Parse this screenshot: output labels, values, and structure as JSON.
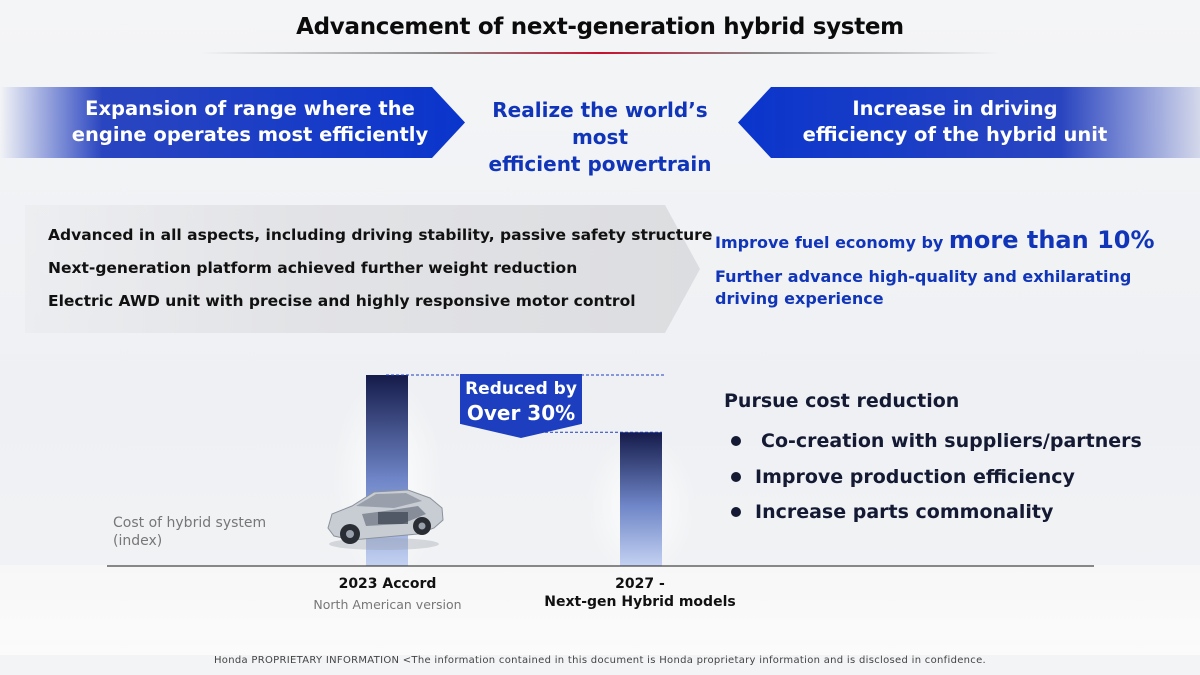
{
  "title": "Advancement of next-generation hybrid system",
  "banners": {
    "left": [
      "Expansion of range where the",
      "engine operates most efficiently"
    ],
    "center": [
      "Realize the world’s most",
      "efficient powertrain"
    ],
    "right": [
      "Increase in driving",
      "efficiency of the hybrid unit"
    ]
  },
  "features": [
    "Advanced in all aspects, including driving stability, passive safety structure",
    "Next-generation platform achieved further weight reduction",
    "Electric AWD unit with precise and highly responsive motor control"
  ],
  "benefits": {
    "fuel_prefix": "Improve fuel economy by ",
    "fuel_highlight": "more than 10%",
    "experience": "Further advance high-quality and exhilarating driving experience"
  },
  "chart_data": {
    "type": "bar",
    "categories": [
      "2023 Accord",
      "2027 - Next-gen Hybrid models"
    ],
    "category_sublabels": [
      "North American version",
      ""
    ],
    "values": [
      100,
      70
    ],
    "ylabel": "Cost of hybrid system (index)",
    "annotation": "Reduced by Over 30%",
    "ylim": [
      0,
      100
    ],
    "colors": {
      "bar_top": "#151b4a",
      "bar_bottom": "#b9c9ee",
      "badge": "#1d3fbf"
    }
  },
  "chart_text": {
    "ylabel_lines": [
      "Cost of hybrid system",
      "(index)"
    ],
    "bar1_main": "2023 Accord",
    "bar1_sub": "North American version",
    "bar2_main": "2027 -",
    "bar2_sub": "Next-gen Hybrid models",
    "badge_line1": "Reduced by",
    "badge_line2": "Over 30%"
  },
  "cost_reduction": {
    "heading": "Pursue cost reduction",
    "items": [
      "Co-creation with suppliers/partners",
      "Improve production efficiency",
      "Increase parts commonality"
    ]
  },
  "footer": "Honda PROPRIETARY INFORMATION <The information contained in this document is Honda proprietary information and is disclosed in confidence.",
  "colors": {
    "accent_blue": "#1135b8",
    "banner_blue": "#0a35cc",
    "dark_navy": "#141a33"
  }
}
